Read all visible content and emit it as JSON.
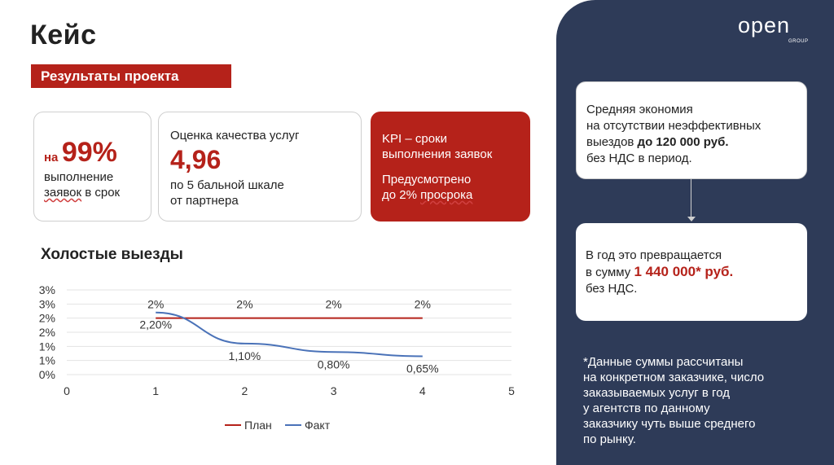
{
  "title": "Кейс",
  "badge": "Результаты проекта",
  "card1": {
    "prefix": "на",
    "value": "99%",
    "line1": "выполнение",
    "line2_word": "заявок",
    "line2_rest": " в срок"
  },
  "card2": {
    "label": "Оценка качества услуг",
    "value": "4,96",
    "line1": "по 5 бальной шкале",
    "line2": "от партнера"
  },
  "card3": {
    "line1": "KPI – сроки",
    "line2": "выполнения заявок",
    "line3": "Предусмотрено",
    "line4_pre": "до 2% ",
    "line4_word": "просрока"
  },
  "chart_title": "Холостые выезды",
  "chart_data": {
    "type": "line",
    "x_ticks": [
      "0",
      "1",
      "2",
      "3",
      "4",
      "5"
    ],
    "xlim": [
      0,
      5
    ],
    "y_ticks": [
      "0%",
      "1%",
      "1%",
      "2%",
      "2%",
      "3%",
      "3%"
    ],
    "ylim": [
      0,
      3
    ],
    "series": [
      {
        "name": "План",
        "color": "#b5221a",
        "x": [
          1,
          2,
          3,
          4
        ],
        "y": [
          2,
          2,
          2,
          2
        ],
        "labels": [
          "2%",
          "2%",
          "2%",
          "2%"
        ]
      },
      {
        "name": "Факт",
        "color": "#4a72b8",
        "x": [
          1,
          2,
          3,
          4
        ],
        "y": [
          2.2,
          1.1,
          0.8,
          0.65
        ],
        "labels": [
          "2,20%",
          "1,10%",
          "0,80%",
          "0,65%"
        ]
      }
    ],
    "grid": true,
    "legend": "bottom"
  },
  "logo": {
    "word": "open",
    "sub": "GROUP"
  },
  "box1": {
    "line1": "Средняя экономия",
    "line2": "на отсутствии неэффективных",
    "line3_pre": "выездов ",
    "line3_bold": "до 120 000 руб.",
    "line4": "без НДС в период."
  },
  "box2": {
    "line1": "В год это превращается",
    "line2_pre": "в сумму ",
    "amount": "1 440 000* руб.",
    "line3": "без НДС."
  },
  "footnote": [
    "*Данные суммы рассчитаны",
    "на конкретном заказчике, число",
    "заказываемых услуг в год",
    "у агентств по данному",
    "заказчику чуть выше среднего",
    "по рынку."
  ]
}
